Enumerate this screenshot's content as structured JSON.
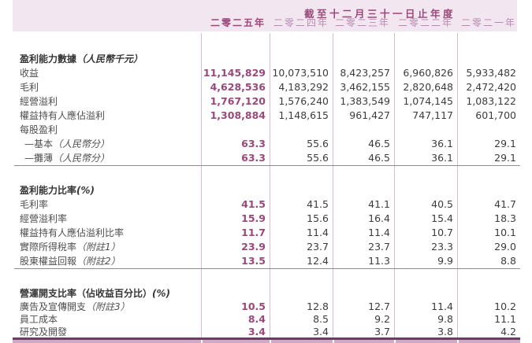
{
  "header": {
    "period_title": "截至十二月三十一日止年度",
    "years": [
      "二零二五年",
      "二零二四年",
      "二零二三年",
      "二零二二年",
      "二零二一年"
    ]
  },
  "colors": {
    "header_band_bg": "#f2e6f0",
    "accent_plum": "#9b4878",
    "muted_year": "#b78cb0",
    "column_line": "#d9bcd3",
    "body_text": "#3c3c3c",
    "section_divider": "#8c8c8c",
    "bottom_rule": "#6f3a63",
    "bottom_band": "#cfaac7"
  },
  "chart_data": {
    "type": "table",
    "title": "截至十二月三十一日止年度",
    "columns": [
      "二零二五年",
      "二零二四年",
      "二零二三年",
      "二零二二年",
      "二零二一年"
    ],
    "sections": [
      {
        "title": "盈利能力數據",
        "title_note": "（人民幣千元）",
        "rows": [
          {
            "label": "收益",
            "note": "",
            "indent": false,
            "values": [
              "11,145,829",
              "10,073,510",
              "8,423,257",
              "6,960,826",
              "5,933,482"
            ]
          },
          {
            "label": "毛利",
            "note": "",
            "indent": false,
            "values": [
              "4,628,536",
              "4,183,292",
              "3,462,155",
              "2,820,648",
              "2,472,420"
            ]
          },
          {
            "label": "經營溢利",
            "note": "",
            "indent": false,
            "values": [
              "1,767,120",
              "1,576,240",
              "1,383,549",
              "1,074,145",
              "1,083,122"
            ]
          },
          {
            "label": "權益持有人應佔溢利",
            "note": "",
            "indent": false,
            "values": [
              "1,308,884",
              "1,148,615",
              "961,427",
              "747,117",
              "601,700"
            ]
          },
          {
            "label": "每股盈利",
            "note": "",
            "indent": false,
            "values": [
              "",
              "",
              "",
              "",
              ""
            ]
          },
          {
            "label": "—基本",
            "note": "（人民幣分）",
            "indent": true,
            "values": [
              "63.3",
              "55.6",
              "46.5",
              "36.1",
              "29.1"
            ]
          },
          {
            "label": "—攤薄",
            "note": "（人民幣分）",
            "indent": true,
            "values": [
              "63.3",
              "55.6",
              "46.5",
              "36.1",
              "29.1"
            ]
          }
        ]
      },
      {
        "title": "盈利能力比率",
        "title_note": "(%)",
        "rows": [
          {
            "label": "毛利率",
            "note": "",
            "indent": false,
            "values": [
              "41.5",
              "41.5",
              "41.1",
              "40.5",
              "41.7"
            ]
          },
          {
            "label": "經營溢利率",
            "note": "",
            "indent": false,
            "values": [
              "15.9",
              "15.6",
              "16.4",
              "15.4",
              "18.3"
            ]
          },
          {
            "label": "權益持有人應佔溢利比率",
            "note": "",
            "indent": false,
            "values": [
              "11.7",
              "11.4",
              "11.4",
              "10.7",
              "10.1"
            ]
          },
          {
            "label": "實際所得稅率",
            "note": "（附註1）",
            "indent": false,
            "values": [
              "23.9",
              "23.7",
              "23.7",
              "23.3",
              "29.0"
            ]
          },
          {
            "label": "股東權益回報",
            "note": "（附註2）",
            "indent": false,
            "values": [
              "13.5",
              "12.4",
              "11.3",
              "9.9",
              "8.8"
            ]
          }
        ]
      },
      {
        "title": "營運開支比率（佔收益百分比）",
        "title_note": "(%)",
        "rows": [
          {
            "label": "廣告及宣傳開支",
            "note": "（附註3）",
            "indent": false,
            "values": [
              "10.5",
              "12.8",
              "12.7",
              "11.4",
              "10.2"
            ]
          },
          {
            "label": "員工成本",
            "note": "",
            "indent": false,
            "values": [
              "8.4",
              "8.5",
              "9.2",
              "9.8",
              "11.1"
            ]
          },
          {
            "label": "研究及開發",
            "note": "",
            "indent": false,
            "values": [
              "3.4",
              "3.4",
              "3.7",
              "3.8",
              "4.2"
            ]
          }
        ]
      }
    ]
  }
}
